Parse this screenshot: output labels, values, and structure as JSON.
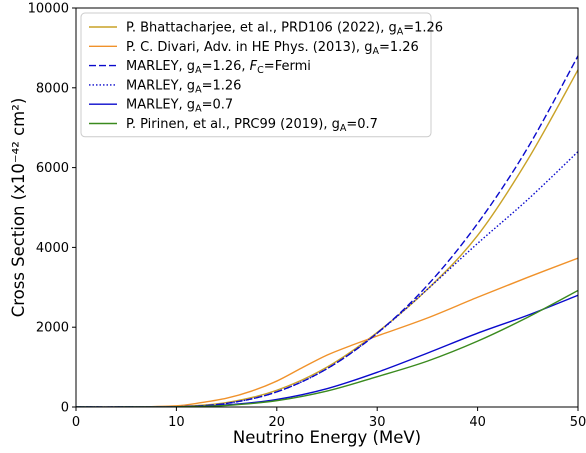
{
  "chart_data": {
    "type": "line",
    "xlabel": "Neutrino Energy (MeV)",
    "ylabel": "Cross Section (x10⁻⁴² cm²)",
    "xlim": [
      0,
      50
    ],
    "ylim": [
      0,
      10000
    ],
    "xticks": [
      "0",
      "10",
      "20",
      "30",
      "40",
      "50"
    ],
    "yticks": [
      "0",
      "2000",
      "4000",
      "6000",
      "8000",
      "10000"
    ],
    "grid": false,
    "legend_position": "upper-left",
    "series": [
      {
        "name": "P. Bhattacharjee, et al., PRD106 (2022), gA=1.26",
        "legend": [
          "P. Bhattacharjee, et al., PRD106 (2022), g",
          "A",
          "=1.26"
        ],
        "color": "#c9a227",
        "style": "solid",
        "x": [
          5,
          10,
          15,
          20,
          25,
          30,
          35,
          40,
          45,
          50
        ],
        "y": [
          0,
          10,
          110,
          420,
          1000,
          1870,
          2950,
          4300,
          6200,
          8450
        ]
      },
      {
        "name": "P. C. Divari, Adv. in HE Phys. (2013), gA=1.26",
        "legend": [
          "P. C. Divari, Adv. in HE Phys. (2013), g",
          "A",
          "=1.26"
        ],
        "color": "#f0922b",
        "style": "solid",
        "x": [
          5,
          10,
          12.5,
          15,
          17.5,
          20,
          22.5,
          25,
          27.5,
          30,
          35,
          40,
          45,
          50
        ],
        "y": [
          0,
          30,
          110,
          220,
          400,
          650,
          980,
          1300,
          1550,
          1780,
          2230,
          2750,
          3250,
          3730
        ]
      },
      {
        "name": "MARLEY, gA=1.26, FC=Fermi",
        "legend": [
          "MARLEY, g",
          "A",
          "=1.26, ",
          "F",
          "C",
          "=Fermi"
        ],
        "color": "#0a0acc",
        "style": "dashed",
        "x": [
          5,
          10,
          15,
          20,
          25,
          30,
          35,
          40,
          45,
          50
        ],
        "y": [
          0,
          5,
          90,
          380,
          960,
          1850,
          3050,
          4600,
          6500,
          8800
        ]
      },
      {
        "name": "MARLEY, gA=1.26",
        "legend": [
          "MARLEY, g",
          "A",
          "=1.26"
        ],
        "color": "#0a0acc",
        "style": "dotted",
        "x": [
          5,
          10,
          15,
          20,
          25,
          30,
          35,
          40,
          45,
          50
        ],
        "y": [
          0,
          5,
          90,
          380,
          960,
          1850,
          2950,
          4100,
          5200,
          6400
        ]
      },
      {
        "name": "MARLEY, gA=0.7",
        "legend": [
          "MARLEY, g",
          "A",
          "=0.7"
        ],
        "color": "#0a0acc",
        "style": "solid",
        "x": [
          5,
          10,
          15,
          20,
          25,
          30,
          35,
          40,
          45,
          50
        ],
        "y": [
          0,
          5,
          50,
          190,
          460,
          870,
          1350,
          1850,
          2300,
          2800
        ]
      },
      {
        "name": "P. Pirinen, et al., PRC99 (2019), gA=0.7",
        "legend": [
          "P. Pirinen, et al., PRC99 (2019), g",
          "A",
          "=0.7"
        ],
        "color": "#3a8a1e",
        "style": "solid",
        "x": [
          5,
          10,
          15,
          20,
          25,
          30,
          35,
          40,
          45,
          50
        ],
        "y": [
          0,
          5,
          40,
          160,
          400,
          760,
          1150,
          1650,
          2250,
          2920
        ]
      }
    ]
  }
}
